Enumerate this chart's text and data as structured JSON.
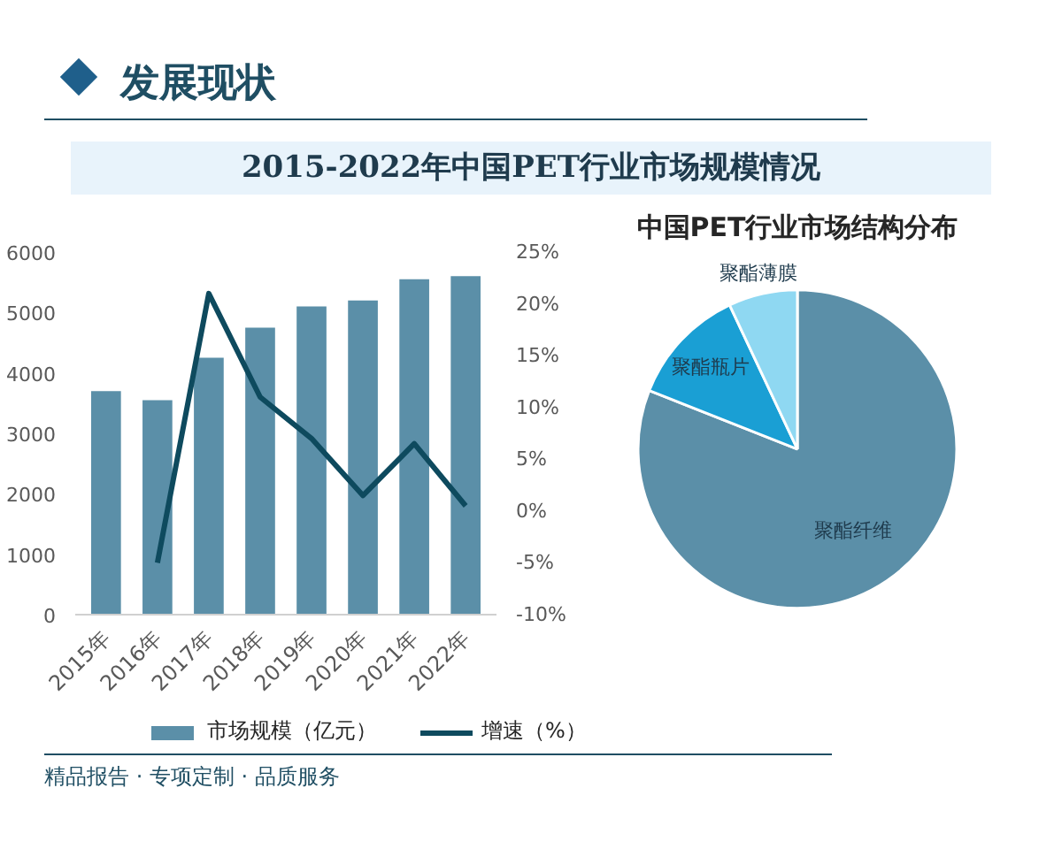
{
  "chart_data": [
    {
      "type": "bar",
      "title": "2015-2022年中国PET行业市场规模情况",
      "annotations": [
        "发展现状",
        "精品报告 · 专项定制 · 品质服务"
      ],
      "categories": [
        "2015年",
        "2016年",
        "2017年",
        "2018年",
        "2019年",
        "2020年",
        "2021年",
        "2022年"
      ],
      "series": [
        {
          "name": "市场规模（亿元）",
          "type": "bar",
          "color": "#5b8fa8",
          "values": [
            3700,
            3550,
            4250,
            4750,
            5100,
            5200,
            5550,
            5600
          ]
        },
        {
          "name": "增速（%）",
          "type": "line",
          "axis": "y2",
          "color": "#0e4a5e",
          "values": [
            null,
            -5,
            21,
            11,
            7,
            1.5,
            6.5,
            0.5
          ]
        }
      ],
      "ylim": [
        0,
        6000
      ],
      "yticks": [
        0,
        1000,
        2000,
        3000,
        4000,
        5000,
        6000
      ],
      "y2lim": [
        -10,
        25
      ],
      "y2ticks": [
        {
          "value": -10,
          "label": "-10%"
        },
        {
          "value": -5,
          "label": "-5%"
        },
        {
          "value": 0,
          "label": "0%"
        },
        {
          "value": 5,
          "label": "5%"
        },
        {
          "value": 10,
          "label": "10%"
        },
        {
          "value": 15,
          "label": "15%"
        },
        {
          "value": 20,
          "label": "20%"
        },
        {
          "value": 25,
          "label": "25%"
        }
      ],
      "grid": false,
      "legend": "bottom"
    },
    {
      "type": "pie",
      "title": "中国PET行业市场结构分布",
      "categories": [
        "聚酯纤维",
        "聚酯瓶片",
        "聚酯薄膜"
      ],
      "values": [
        81,
        12,
        7
      ],
      "colors": [
        "#5b8fa8",
        "#1a9fd4",
        "#8fd8f2"
      ]
    }
  ]
}
